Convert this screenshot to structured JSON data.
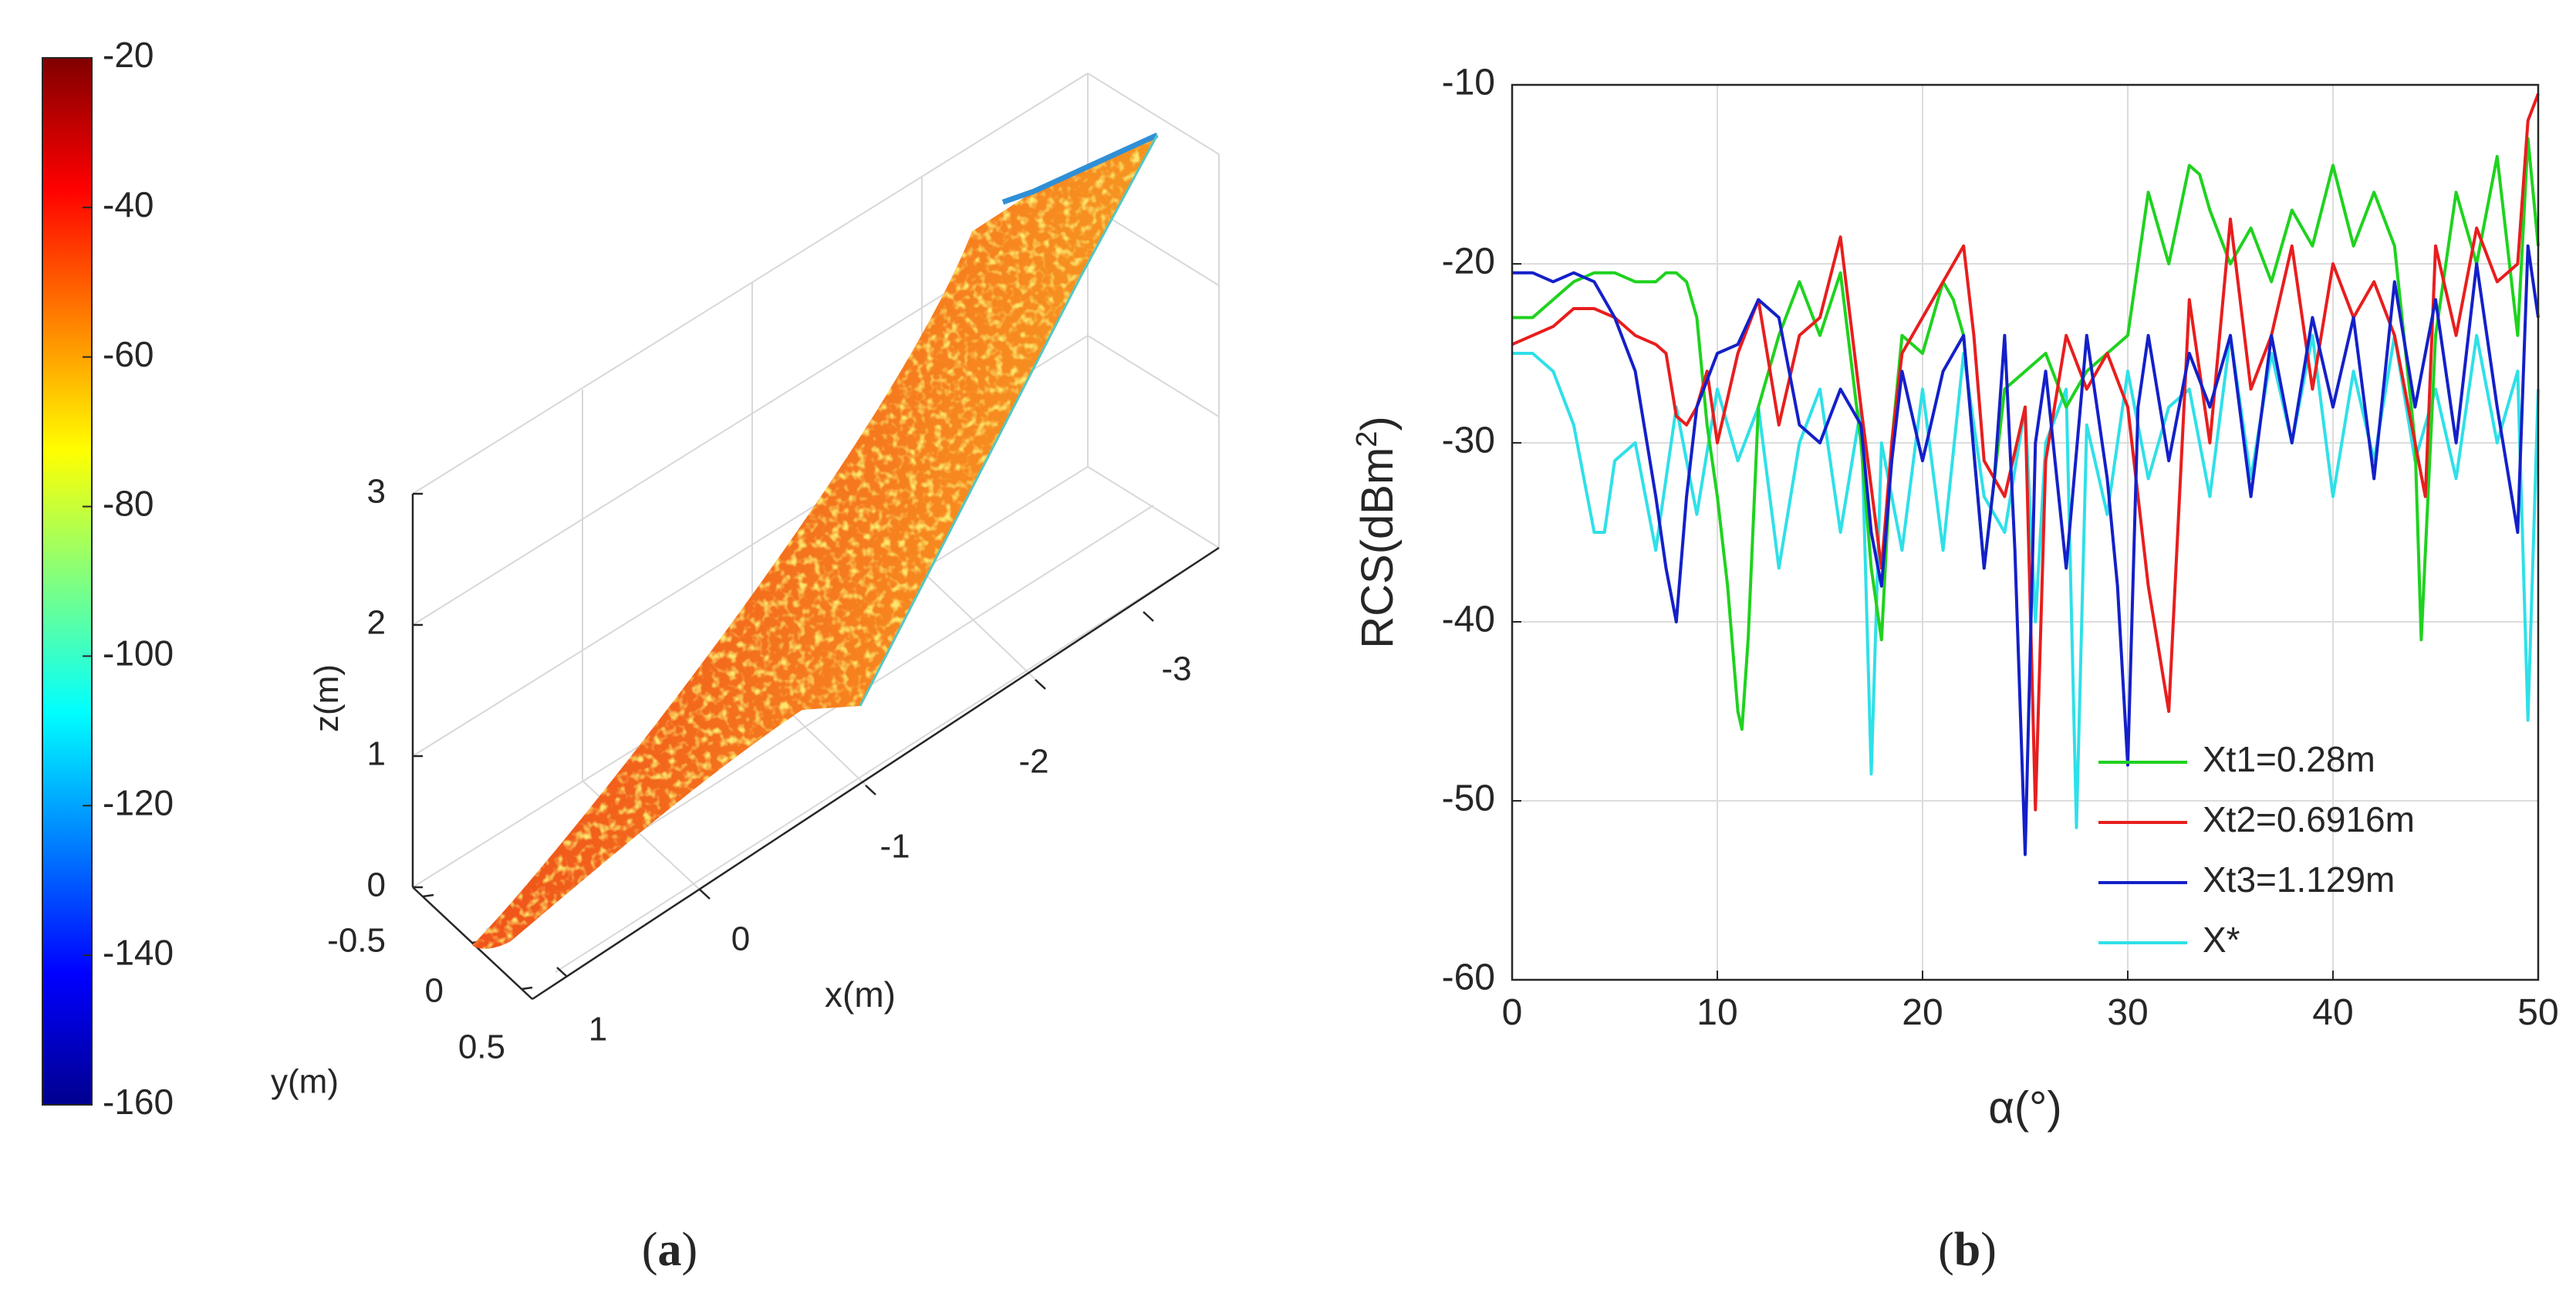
{
  "panels": {
    "a": {
      "label_paren_open": "(",
      "label_letter": "a",
      "label_paren_close": ")"
    },
    "b": {
      "label_paren_open": "(",
      "label_letter": "b",
      "label_paren_close": ")"
    }
  },
  "colors": {
    "axis": "#262626",
    "grid": "#dcdcdc",
    "surface_red": "#f03a14",
    "surface_orange": "#f7811e",
    "surface_yellow": "#f6c12a",
    "surface_edge": "#2f8fd6"
  },
  "chart_data": [
    {
      "type": "heatmap",
      "description_kind": "3d-surface",
      "colorbar": {
        "ticks": [
          "-20",
          "-40",
          "-60",
          "-80",
          "-100",
          "-120",
          "-140",
          "-160"
        ],
        "range": [
          -160,
          -20
        ],
        "colormap": "jet"
      },
      "x_axis": {
        "label": "x(m)",
        "ticks": [
          "1",
          "0",
          "-1",
          "-2",
          "-3"
        ]
      },
      "y_axis": {
        "label": "y(m)",
        "ticks": [
          "-0.5",
          "0",
          "0.5"
        ]
      },
      "z_axis": {
        "label": "z(m)",
        "ticks": [
          "0",
          "1",
          "2",
          "3"
        ]
      },
      "grid": true
    },
    {
      "type": "line",
      "xlabel": "α(°)",
      "ylabel_main": "RCS(dBm",
      "ylabel_sup": "2",
      "ylabel_close": ")",
      "xlim": [
        0,
        50
      ],
      "ylim": [
        -60,
        -10
      ],
      "xticks": [
        "0",
        "10",
        "20",
        "30",
        "40",
        "50"
      ],
      "yticks": [
        "-10",
        "-20",
        "-30",
        "-40",
        "-50",
        "-60"
      ],
      "grid": true,
      "legend_position": "bottom-right",
      "series": [
        {
          "name": "Xt1=0.28m",
          "color": "#1fd21f",
          "x": [
            0,
            1,
            2,
            3,
            4,
            5,
            6,
            7,
            7.5,
            8,
            8.5,
            9,
            9.5,
            10,
            10.5,
            11,
            11.2,
            11.5,
            12,
            13,
            14,
            15,
            16,
            17,
            17.5,
            18,
            18.5,
            19,
            20,
            21,
            21.5,
            22,
            23,
            24,
            25,
            26,
            27,
            28,
            29,
            30,
            30.5,
            31,
            32,
            33,
            33.5,
            34,
            35,
            36,
            37,
            38,
            39,
            40,
            41,
            42,
            43,
            44,
            44.3,
            45,
            46,
            47,
            48,
            49,
            49.5,
            50
          ],
          "y": [
            -23,
            -23,
            -22,
            -21,
            -20.5,
            -20.5,
            -21,
            -21,
            -20.5,
            -20.5,
            -21,
            -23,
            -29,
            -33,
            -38,
            -45,
            -46,
            -41,
            -28,
            -24,
            -21,
            -24,
            -20.5,
            -30,
            -37,
            -41,
            -30,
            -24,
            -25,
            -21,
            -22,
            -24,
            -37,
            -27,
            -26,
            -25,
            -28,
            -26,
            -25,
            -24,
            -20,
            -16,
            -20,
            -14.5,
            -15,
            -17,
            -20,
            -18,
            -21,
            -17,
            -19,
            -14.5,
            -19,
            -16,
            -19,
            -30,
            -41,
            -24,
            -16,
            -20,
            -14,
            -24,
            -13,
            -19
          ]
        },
        {
          "name": "Xt2=0.6916m",
          "color": "#e81e1e",
          "x": [
            0,
            1,
            2,
            3,
            4,
            5,
            6,
            7,
            7.5,
            8,
            8.5,
            9,
            9.5,
            10,
            11,
            12,
            13,
            14,
            15,
            16,
            17,
            18,
            18.5,
            19,
            20,
            21,
            22,
            22.5,
            23,
            24,
            25,
            25.5,
            26,
            27,
            28,
            29,
            30,
            31,
            32,
            33,
            34,
            35,
            36,
            37,
            38,
            39,
            40,
            41,
            42,
            43,
            44,
            44.5,
            45,
            46,
            47,
            48,
            49,
            49.5,
            50
          ],
          "y": [
            -24.5,
            -24,
            -23.5,
            -22.5,
            -22.5,
            -23,
            -24,
            -24.5,
            -25,
            -28.5,
            -29,
            -28,
            -26,
            -30,
            -25,
            -22,
            -29,
            -24,
            -23,
            -18.5,
            -28,
            -37,
            -30,
            -25,
            -23,
            -21,
            -19,
            -24,
            -31,
            -33,
            -28,
            -50.5,
            -31,
            -24,
            -27,
            -25,
            -28,
            -38,
            -45,
            -22,
            -30,
            -17.5,
            -27,
            -24,
            -19,
            -27,
            -20,
            -23,
            -21,
            -24,
            -30,
            -33,
            -19,
            -24,
            -18,
            -21,
            -20,
            -12,
            -10.5
          ]
        },
        {
          "name": "Xt3=1.129m",
          "color": "#1420c8",
          "x": [
            0,
            1,
            2,
            3,
            4,
            5,
            6,
            7,
            7.5,
            8,
            8.5,
            9,
            10,
            11,
            12,
            13,
            14,
            15,
            16,
            17,
            17.5,
            18,
            18.5,
            19,
            20,
            21,
            22,
            23,
            23.5,
            24,
            24.5,
            25,
            25.5,
            26,
            27,
            28,
            29,
            29.5,
            30,
            30.5,
            31,
            32,
            33,
            34,
            35,
            36,
            37,
            38,
            39,
            40,
            41,
            42,
            43,
            44,
            45,
            46,
            47,
            48,
            49,
            49.5,
            50
          ],
          "y": [
            -20.5,
            -20.5,
            -21,
            -20.5,
            -21,
            -23,
            -26,
            -33,
            -37,
            -40,
            -33,
            -28,
            -25,
            -24.5,
            -22,
            -23,
            -29,
            -30,
            -27,
            -29,
            -35,
            -38,
            -31,
            -26,
            -31,
            -26,
            -24,
            -37,
            -32,
            -24,
            -36,
            -53,
            -30,
            -26,
            -37,
            -24,
            -32,
            -38,
            -48,
            -28,
            -24,
            -31,
            -25,
            -28,
            -24,
            -33,
            -24,
            -30,
            -23,
            -28,
            -23,
            -32,
            -21,
            -28,
            -22,
            -30,
            -20,
            -28,
            -35,
            -19,
            -23
          ]
        },
        {
          "name": "X*",
          "color": "#2fe0e8",
          "x": [
            0,
            1,
            2,
            3,
            3.5,
            4,
            4.5,
            5,
            6,
            7,
            8,
            9,
            10,
            11,
            12,
            13,
            14,
            15,
            16,
            17,
            17.5,
            18,
            19,
            20,
            21,
            22,
            23,
            24,
            25,
            25.5,
            26,
            27,
            27.5,
            28,
            29,
            30,
            31,
            32,
            33,
            34,
            35,
            36,
            37,
            38,
            39,
            40,
            41,
            42,
            43,
            44,
            45,
            46,
            47,
            48,
            49,
            49.5,
            50
          ],
          "y": [
            -25,
            -25,
            -26,
            -29,
            -32,
            -35,
            -35,
            -31,
            -30,
            -36,
            -28,
            -34,
            -27,
            -31,
            -28,
            -37,
            -30,
            -27,
            -35,
            -28,
            -48.5,
            -30,
            -36,
            -27,
            -36,
            -25,
            -33,
            -35,
            -28,
            -40,
            -30,
            -27,
            -51.5,
            -29,
            -34,
            -26,
            -32,
            -28,
            -27,
            -33,
            -24,
            -32,
            -25,
            -30,
            -24,
            -33,
            -26,
            -31,
            -24,
            -31,
            -27,
            -32,
            -24,
            -30,
            -26,
            -45.5,
            -27
          ]
        }
      ]
    }
  ]
}
